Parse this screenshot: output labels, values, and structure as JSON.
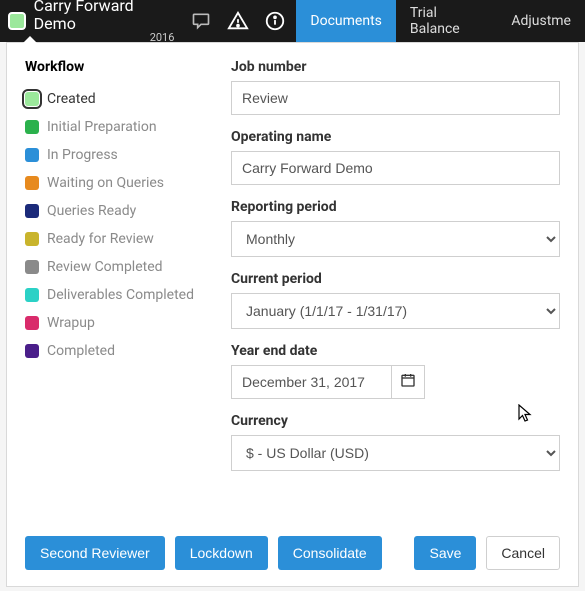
{
  "header": {
    "title": "Carry Forward Demo",
    "year": "2016",
    "tabs": [
      {
        "label": "Documents",
        "active": true
      },
      {
        "label": "Trial Balance",
        "active": false
      },
      {
        "label": "Adjustme",
        "active": false
      }
    ],
    "status_color": "#9be89b"
  },
  "workflow": {
    "heading": "Workflow",
    "items": [
      {
        "label": "Created",
        "color": "#9be89b",
        "active": true
      },
      {
        "label": "Initial Preparation",
        "color": "#2bb14c",
        "active": false
      },
      {
        "label": "In Progress",
        "color": "#2b8fd8",
        "active": false
      },
      {
        "label": "Waiting on Queries",
        "color": "#e78a1e",
        "active": false
      },
      {
        "label": "Queries Ready",
        "color": "#1b2a7a",
        "active": false
      },
      {
        "label": "Ready for Review",
        "color": "#c9b42c",
        "active": false
      },
      {
        "label": "Review Completed",
        "color": "#8a8a8a",
        "active": false
      },
      {
        "label": "Deliverables Completed",
        "color": "#2bd1c6",
        "active": false
      },
      {
        "label": "Wrapup",
        "color": "#d92b6b",
        "active": false
      },
      {
        "label": "Completed",
        "color": "#4a1e8a",
        "active": false
      }
    ]
  },
  "form": {
    "job_number": {
      "label": "Job number",
      "value": "Review"
    },
    "operating_name": {
      "label": "Operating name",
      "value": "Carry Forward Demo"
    },
    "reporting_period": {
      "label": "Reporting period",
      "value": "Monthly"
    },
    "current_period": {
      "label": "Current period",
      "value": "January (1/1/17 - 1/31/17)"
    },
    "year_end": {
      "label": "Year end date",
      "value": "December 31, 2017"
    },
    "currency": {
      "label": "Currency",
      "value": "$ - US Dollar (USD)"
    }
  },
  "buttons": {
    "second_reviewer": "Second Reviewer",
    "lockdown": "Lockdown",
    "consolidate": "Consolidate",
    "save": "Save",
    "cancel": "Cancel"
  }
}
